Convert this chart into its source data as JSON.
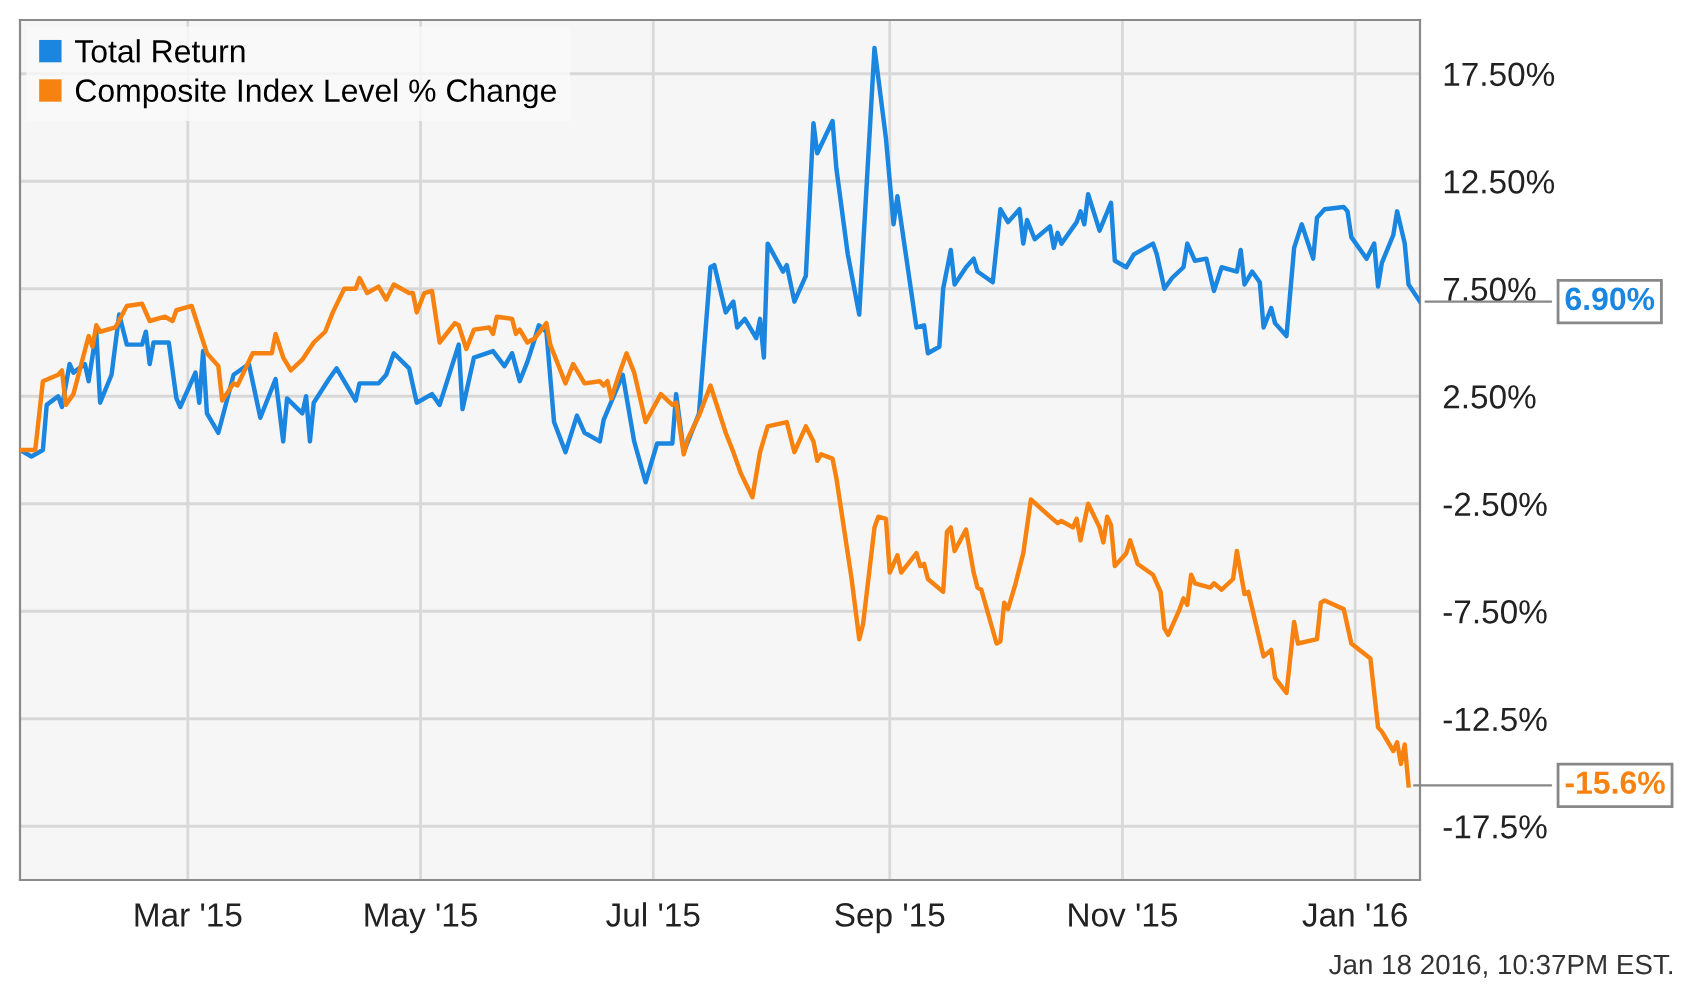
{
  "chart_data": {
    "type": "line",
    "xlim": [
      "2015-01-16",
      "2016-01-18"
    ],
    "xticks": [
      {
        "value": "2015-03-01",
        "label": "Mar '15"
      },
      {
        "value": "2015-05-01",
        "label": "May '15"
      },
      {
        "value": "2015-07-01",
        "label": "Jul '15"
      },
      {
        "value": "2015-09-01",
        "label": "Sep '15"
      },
      {
        "value": "2015-11-01",
        "label": "Nov '15"
      },
      {
        "value": "2016-01-01",
        "label": "Jan '16"
      }
    ],
    "ylim": [
      -20,
      20
    ],
    "yticks": [
      {
        "value": 17.5,
        "label": "17.50%"
      },
      {
        "value": 12.5,
        "label": "12.50%"
      },
      {
        "value": 7.5,
        "label": "7.50%"
      },
      {
        "value": 2.5,
        "label": "2.50%"
      },
      {
        "value": -2.5,
        "label": "-2.50%"
      },
      {
        "value": -7.5,
        "label": "-7.50%"
      },
      {
        "value": -12.5,
        "label": "-12.5%"
      },
      {
        "value": -17.5,
        "label": "-17.5%"
      }
    ],
    "grid": true,
    "legend": "top left",
    "marker": "none",
    "line_style": "solid",
    "series": [
      {
        "name": "Total Return",
        "color": "#1a86e0",
        "x": [
          "2015-01-16",
          "2015-01-19",
          "2015-01-22",
          "2015-01-23",
          "2015-01-26",
          "2015-01-27",
          "2015-01-29",
          "2015-01-30",
          "2015-02-02",
          "2015-02-03",
          "2015-02-05",
          "2015-02-06",
          "2015-02-09",
          "2015-02-11",
          "2015-02-13",
          "2015-02-17",
          "2015-02-18",
          "2015-02-19",
          "2015-02-20",
          "2015-02-24",
          "2015-02-26",
          "2015-02-27",
          "2015-03-03",
          "2015-03-04",
          "2015-03-05",
          "2015-03-06",
          "2015-03-09",
          "2015-03-13",
          "2015-03-17",
          "2015-03-20",
          "2015-03-24",
          "2015-03-26",
          "2015-03-27",
          "2015-03-31",
          "2015-04-01",
          "2015-04-02",
          "2015-04-03",
          "2015-04-07",
          "2015-04-09",
          "2015-04-14",
          "2015-04-15",
          "2015-04-20",
          "2015-04-22",
          "2015-04-24",
          "2015-04-28",
          "2015-04-30",
          "2015-05-04",
          "2015-05-06",
          "2015-05-11",
          "2015-05-12",
          "2015-05-15",
          "2015-05-20",
          "2015-05-23",
          "2015-05-25",
          "2015-05-27",
          "2015-05-29",
          "2015-05-31",
          "2015-06-01",
          "2015-06-03",
          "2015-06-05",
          "2015-06-08",
          "2015-06-11",
          "2015-06-13",
          "2015-06-17",
          "2015-06-18",
          "2015-06-23",
          "2015-06-26",
          "2015-06-29",
          "2015-07-02",
          "2015-07-06",
          "2015-07-07",
          "2015-07-09",
          "2015-07-13",
          "2015-07-16",
          "2015-07-17",
          "2015-07-20",
          "2015-07-22",
          "2015-07-23",
          "2015-07-25",
          "2015-07-28",
          "2015-07-29",
          "2015-07-30",
          "2015-07-31",
          "2015-08-04",
          "2015-08-05",
          "2015-08-07",
          "2015-08-10",
          "2015-08-12",
          "2015-08-13",
          "2015-08-17",
          "2015-08-18",
          "2015-08-21",
          "2015-08-24",
          "2015-08-28",
          "2015-08-31",
          "2015-09-02",
          "2015-09-03",
          "2015-09-08",
          "2015-09-10",
          "2015-09-11",
          "2015-09-14",
          "2015-09-15",
          "2015-09-17",
          "2015-09-18",
          "2015-09-21",
          "2015-09-23",
          "2015-09-24",
          "2015-09-28",
          "2015-09-30",
          "2015-10-02",
          "2015-10-05",
          "2015-10-06",
          "2015-10-07",
          "2015-10-09",
          "2015-10-13",
          "2015-10-14",
          "2015-10-15",
          "2015-10-16",
          "2015-10-20",
          "2015-10-21",
          "2015-10-22",
          "2015-10-23",
          "2015-10-26",
          "2015-10-29",
          "2015-10-30",
          "2015-11-02",
          "2015-11-04",
          "2015-11-09",
          "2015-11-10",
          "2015-11-12",
          "2015-11-14",
          "2015-11-17",
          "2015-11-18",
          "2015-11-20",
          "2015-11-23",
          "2015-11-25",
          "2015-11-27",
          "2015-12-01",
          "2015-12-02",
          "2015-12-03",
          "2015-12-05",
          "2015-12-07",
          "2015-12-08",
          "2015-12-10",
          "2015-12-11",
          "2015-12-14",
          "2015-12-16",
          "2015-12-18",
          "2015-12-21",
          "2015-12-22",
          "2015-12-24",
          "2015-12-29",
          "2015-12-30",
          "2015-12-31",
          "2016-01-04",
          "2016-01-06",
          "2016-01-07",
          "2016-01-08",
          "2016-01-11",
          "2016-01-12",
          "2016-01-14",
          "2016-01-15",
          "2016-01-18"
        ],
        "values": [
          0.0,
          -0.3,
          0.0,
          2.1,
          2.5,
          2.0,
          4.0,
          3.6,
          4.0,
          3.2,
          5.5,
          2.2,
          3.5,
          6.3,
          4.9,
          4.9,
          5.5,
          4.0,
          5.0,
          5.0,
          2.4,
          2.0,
          3.6,
          2.2,
          4.6,
          1.7,
          0.8,
          3.5,
          4.0,
          1.5,
          3.3,
          0.4,
          2.4,
          1.7,
          2.5,
          0.4,
          2.2,
          3.3,
          3.8,
          2.3,
          3.1,
          3.1,
          3.5,
          4.5,
          3.8,
          2.2,
          2.6,
          2.1,
          4.9,
          1.9,
          4.3,
          4.6,
          3.9,
          4.5,
          3.2,
          4.1,
          5.2,
          5.8,
          5.5,
          1.3,
          -0.1,
          1.6,
          0.8,
          0.4,
          1.4,
          3.5,
          0.4,
          -1.5,
          0.3,
          0.3,
          2.6,
          -0.1,
          1.7,
          8.5,
          8.6,
          6.4,
          6.9,
          5.7,
          6.1,
          5.2,
          6.1,
          4.3,
          9.6,
          8.3,
          8.6,
          6.9,
          8.1,
          15.2,
          13.8,
          15.3,
          13.1,
          9.1,
          6.3,
          18.7,
          14.5,
          10.5,
          11.8,
          5.7,
          5.8,
          4.5,
          4.8,
          7.5,
          9.3,
          7.7,
          8.5,
          8.9,
          8.3,
          7.8,
          11.2,
          10.6,
          11.2,
          9.6,
          10.7,
          9.8,
          10.4,
          9.4,
          10.1,
          9.6,
          10.6,
          11.1,
          10.5,
          11.9,
          10.2,
          11.5,
          8.8,
          8.5,
          9.1,
          9.6,
          9.1,
          7.5,
          8.0,
          8.5,
          9.6,
          8.8,
          8.9,
          7.4,
          8.5,
          8.3,
          9.3,
          7.7,
          8.3,
          7.8,
          5.7,
          6.6,
          5.9,
          5.3,
          9.4,
          10.5,
          8.9,
          10.8,
          11.2,
          11.3,
          11.1,
          9.9,
          8.9,
          9.6,
          7.6,
          8.7,
          10.0,
          11.1,
          9.6,
          7.7,
          6.9
        ]
      },
      {
        "name": "Composite Index Level % Change",
        "color": "#f8820f",
        "x": [
          "2015-01-16",
          "2015-01-20",
          "2015-01-22",
          "2015-01-26",
          "2015-01-27",
          "2015-01-28",
          "2015-01-30",
          "2015-02-03",
          "2015-02-04",
          "2015-02-05",
          "2015-02-06",
          "2015-02-10",
          "2015-02-13",
          "2015-02-17",
          "2015-02-19",
          "2015-02-23",
          "2015-02-25",
          "2015-02-26",
          "2015-03-02",
          "2015-03-04",
          "2015-03-06",
          "2015-03-09",
          "2015-03-10",
          "2015-03-13",
          "2015-03-14",
          "2015-03-18",
          "2015-03-21",
          "2015-03-23",
          "2015-03-24",
          "2015-03-26",
          "2015-03-28",
          "2015-03-31",
          "2015-04-03",
          "2015-04-06",
          "2015-04-08",
          "2015-04-11",
          "2015-04-14",
          "2015-04-15",
          "2015-04-17",
          "2015-04-20",
          "2015-04-22",
          "2015-04-24",
          "2015-04-28",
          "2015-04-29",
          "2015-04-30",
          "2015-05-02",
          "2015-05-04",
          "2015-05-06",
          "2015-05-10",
          "2015-05-11",
          "2015-05-13",
          "2015-05-15",
          "2015-05-19",
          "2015-05-20",
          "2015-05-21",
          "2015-05-25",
          "2015-05-26",
          "2015-05-27",
          "2015-05-29",
          "2015-05-31",
          "2015-06-03",
          "2015-06-04",
          "2015-06-08",
          "2015-06-10",
          "2015-06-13",
          "2015-06-17",
          "2015-06-18",
          "2015-06-19",
          "2015-06-20",
          "2015-06-22",
          "2015-06-24",
          "2015-06-26",
          "2015-06-29",
          "2015-07-03",
          "2015-07-06",
          "2015-07-07",
          "2015-07-09",
          "2015-07-10",
          "2015-07-13",
          "2015-07-16",
          "2015-07-20",
          "2015-07-22",
          "2015-07-24",
          "2015-07-27",
          "2015-07-29",
          "2015-07-31",
          "2015-08-05",
          "2015-08-07",
          "2015-08-10",
          "2015-08-12",
          "2015-08-13",
          "2015-08-14",
          "2015-08-17",
          "2015-08-18",
          "2015-08-22",
          "2015-08-24",
          "2015-08-25",
          "2015-08-28",
          "2015-08-29",
          "2015-08-31",
          "2015-09-01",
          "2015-09-03",
          "2015-09-04",
          "2015-09-08",
          "2015-09-09",
          "2015-09-10",
          "2015-09-11",
          "2015-09-15",
          "2015-09-16",
          "2015-09-17",
          "2015-09-18",
          "2015-09-21",
          "2015-09-23",
          "2015-09-24",
          "2015-09-25",
          "2015-09-29",
          "2015-09-30",
          "2015-10-01",
          "2015-10-02",
          "2015-10-04",
          "2015-10-06",
          "2015-10-08",
          "2015-10-13",
          "2015-10-15",
          "2015-10-16",
          "2015-10-19",
          "2015-10-20",
          "2015-10-21",
          "2015-10-23",
          "2015-10-26",
          "2015-10-27",
          "2015-10-28",
          "2015-10-29",
          "2015-10-30",
          "2015-11-02",
          "2015-11-03",
          "2015-11-05",
          "2015-11-09",
          "2015-11-11",
          "2015-11-12",
          "2015-11-13",
          "2015-11-16",
          "2015-11-17",
          "2015-11-18",
          "2015-11-19",
          "2015-11-20",
          "2015-11-24",
          "2015-11-25",
          "2015-11-27",
          "2015-11-30",
          "2015-12-01",
          "2015-12-03",
          "2015-12-04",
          "2015-12-08",
          "2015-12-10",
          "2015-12-11",
          "2015-12-14",
          "2015-12-16",
          "2015-12-17",
          "2015-12-22",
          "2015-12-23",
          "2015-12-24",
          "2015-12-29",
          "2015-12-31",
          "2016-01-05",
          "2016-01-07",
          "2016-01-08",
          "2016-01-11",
          "2016-01-12",
          "2016-01-13",
          "2016-01-14",
          "2016-01-15"
        ],
        "values": [
          0.0,
          0.0,
          3.2,
          3.5,
          3.7,
          2.1,
          2.6,
          5.3,
          4.8,
          5.8,
          5.5,
          5.7,
          6.7,
          6.8,
          6.0,
          6.2,
          6.0,
          6.5,
          6.7,
          5.6,
          4.5,
          3.9,
          2.3,
          3.1,
          3.0,
          4.5,
          4.5,
          4.5,
          5.4,
          4.3,
          3.7,
          4.2,
          5.0,
          5.5,
          6.4,
          7.5,
          7.5,
          8.0,
          7.3,
          7.6,
          7.0,
          7.7,
          7.3,
          7.3,
          6.4,
          7.3,
          7.4,
          5.0,
          5.9,
          5.8,
          4.7,
          5.6,
          5.7,
          5.4,
          6.2,
          6.1,
          5.4,
          5.6,
          5.0,
          5.2,
          5.9,
          4.9,
          3.1,
          4.0,
          3.1,
          3.2,
          3.0,
          3.2,
          2.4,
          3.5,
          4.5,
          3.6,
          1.3,
          2.6,
          2.1,
          2.2,
          -0.2,
          0.5,
          1.6,
          3.0,
          0.8,
          -0.1,
          -1.1,
          -2.2,
          -0.1,
          1.1,
          1.3,
          -0.1,
          1.1,
          0.4,
          -0.5,
          -0.2,
          -0.4,
          -1.3,
          -6.0,
          -8.8,
          -8.1,
          -3.6,
          -3.1,
          -3.2,
          -5.7,
          -4.9,
          -5.7,
          -4.8,
          -5.4,
          -5.3,
          -6.0,
          -6.6,
          -3.8,
          -3.6,
          -4.7,
          -3.7,
          -5.7,
          -6.4,
          -6.5,
          -9.0,
          -8.9,
          -7.1,
          -7.4,
          -6.2,
          -4.8,
          -2.3,
          -3.1,
          -3.4,
          -3.3,
          -3.6,
          -3.2,
          -4.2,
          -2.5,
          -3.6,
          -4.3,
          -3.1,
          -3.5,
          -5.4,
          -4.8,
          -4.2,
          -5.3,
          -5.8,
          -6.6,
          -8.3,
          -8.6,
          -7.4,
          -6.9,
          -7.2,
          -5.8,
          -6.2,
          -6.4,
          -6.2,
          -6.5,
          -6.0,
          -4.7,
          -6.7,
          -6.6,
          -9.6,
          -9.3,
          -10.6,
          -11.3,
          -8.0,
          -9.0,
          -8.8,
          -7.1,
          -7.0,
          -7.4,
          -9.0,
          -9.7,
          -12.9,
          -13.1,
          -14.0,
          -13.6,
          -14.6,
          -13.7,
          -15.6
        ]
      }
    ],
    "annotations": [
      {
        "text": "6.90%",
        "x": "2016-01-18",
        "y": 6.9
      },
      {
        "text": "-15.6%",
        "x": "2016-01-15",
        "y": -15.6
      },
      "Jan 18 2016, 10:37PM EST."
    ]
  }
}
